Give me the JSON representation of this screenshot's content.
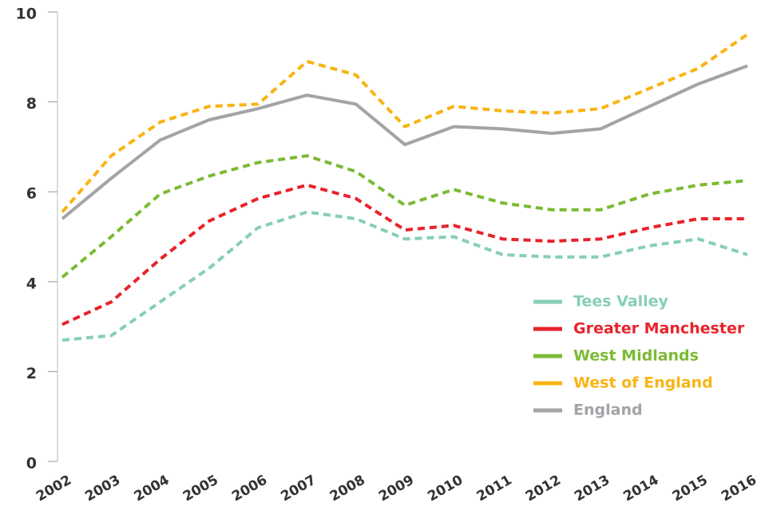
{
  "chart_data": {
    "type": "line",
    "categories": [
      "2002",
      "2003",
      "2004",
      "2005",
      "2006",
      "2007",
      "2008",
      "2009",
      "2010",
      "2011",
      "2012",
      "2013",
      "2014",
      "2015",
      "2016"
    ],
    "ylim": [
      0,
      10
    ],
    "yticks": [
      0,
      2,
      4,
      6,
      8,
      10
    ],
    "series": [
      {
        "name": "Tees Valley",
        "color": "#86cfb3",
        "dashed": true,
        "values": [
          2.7,
          2.8,
          3.55,
          4.3,
          5.2,
          5.55,
          5.4,
          4.95,
          5.0,
          4.6,
          4.55,
          4.55,
          4.8,
          4.95,
          4.6
        ]
      },
      {
        "name": "Greater Manchester",
        "color": "#e8232b",
        "dashed": true,
        "values": [
          3.05,
          3.55,
          4.5,
          5.35,
          5.85,
          6.15,
          5.85,
          5.15,
          5.25,
          4.95,
          4.9,
          4.95,
          5.2,
          5.4,
          5.4
        ]
      },
      {
        "name": "West Midlands",
        "color": "#7cba34",
        "dashed": true,
        "values": [
          4.1,
          5.0,
          5.95,
          6.35,
          6.65,
          6.8,
          6.45,
          5.7,
          6.05,
          5.75,
          5.6,
          5.6,
          5.95,
          6.15,
          6.25
        ]
      },
      {
        "name": "West of England",
        "color": "#f8b414",
        "dashed": true,
        "values": [
          5.55,
          6.8,
          7.55,
          7.9,
          7.95,
          8.9,
          8.6,
          7.45,
          7.9,
          7.8,
          7.75,
          7.85,
          8.3,
          8.75,
          9.5
        ]
      },
      {
        "name": "England",
        "color": "#a3a3a8",
        "dashed": false,
        "values": [
          5.4,
          6.3,
          7.15,
          7.6,
          7.85,
          8.15,
          7.95,
          7.05,
          7.45,
          7.4,
          7.3,
          7.4,
          7.9,
          8.4,
          8.8
        ]
      }
    ]
  }
}
